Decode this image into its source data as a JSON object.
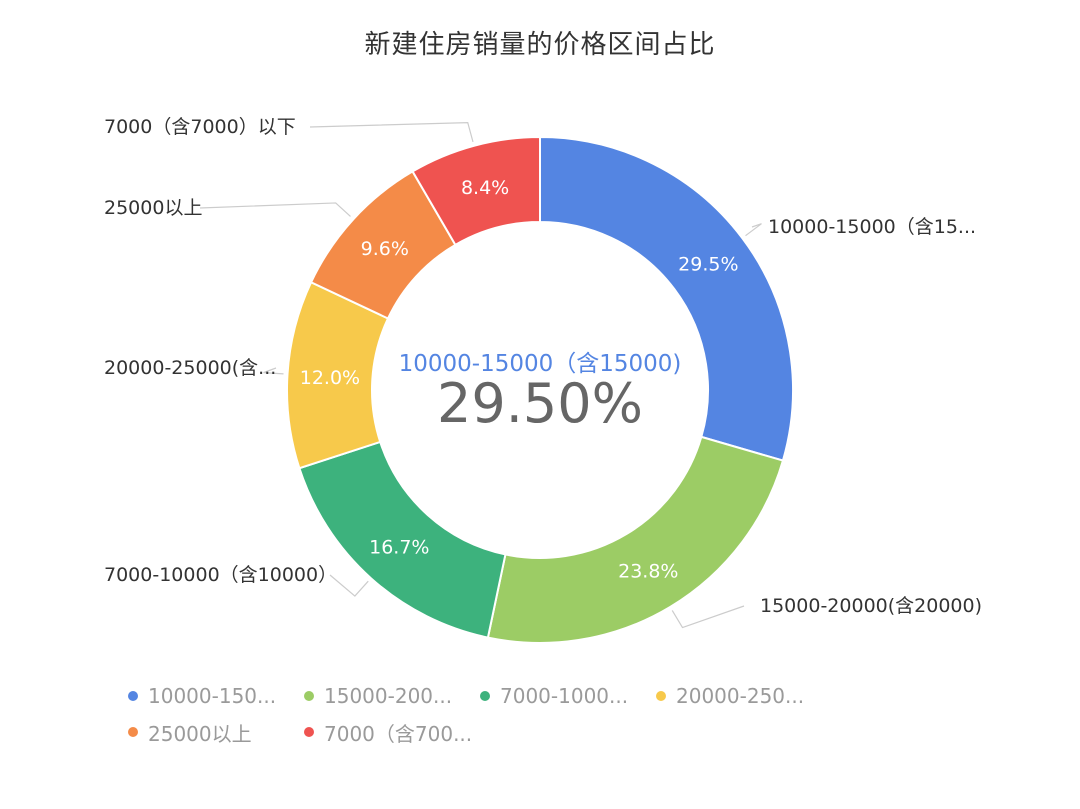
{
  "chart_data": {
    "type": "pie",
    "variant": "donut",
    "title": "新建住房销量的价格区间占比",
    "center": {
      "name": "10000-15000（含15000)",
      "value": "29.50%"
    },
    "legend_position": "bottom",
    "slices": [
      {
        "label": "10000-15000（含15...",
        "legend_label": "10000-150...",
        "value": 29.5,
        "value_label": "29.5%",
        "color": "#5485e2"
      },
      {
        "label": "15000-20000(含20000)",
        "legend_label": "15000-200...",
        "value": 23.8,
        "value_label": "23.8%",
        "color": "#9ccc65"
      },
      {
        "label": "7000-10000（含10000）",
        "legend_label": "7000-1000...",
        "value": 16.7,
        "value_label": "16.7%",
        "color": "#3db27d"
      },
      {
        "label": "20000-25000(含...",
        "legend_label": "20000-250...",
        "value": 12.0,
        "value_label": "12.0%",
        "color": "#f7c94b"
      },
      {
        "label": "25000以上",
        "legend_label": "25000以上",
        "value": 9.6,
        "value_label": "9.6%",
        "color": "#f48b48"
      },
      {
        "label": "7000（含7000）以下",
        "legend_label": "7000（含700...",
        "value": 8.4,
        "value_label": "8.4%",
        "color": "#ef5350"
      }
    ]
  }
}
